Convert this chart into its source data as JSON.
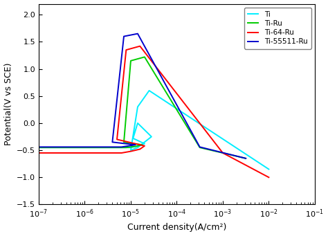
{
  "title": "",
  "xlabel": "Current density(A/cm²)",
  "ylabel": "Potential(V vs SCE)",
  "xlim_log": [
    -7,
    -1
  ],
  "ylim": [
    -1.5,
    2.2
  ],
  "yticks": [
    -1.5,
    -1.0,
    -0.5,
    0.0,
    0.5,
    1.0,
    1.5,
    2.0
  ],
  "legend_labels": [
    "Ti",
    "Ti-Ru",
    "Ti-64-Ru",
    "Ti-55511-Ru"
  ],
  "colors": {
    "Ti": "#00EEFF",
    "Ti-Ru": "#00CC00",
    "Ti-64-Ru": "#FF0000",
    "Ti-55511-Ru": "#0000CC"
  },
  "background_color": "#ffffff",
  "linewidth": 1.4
}
